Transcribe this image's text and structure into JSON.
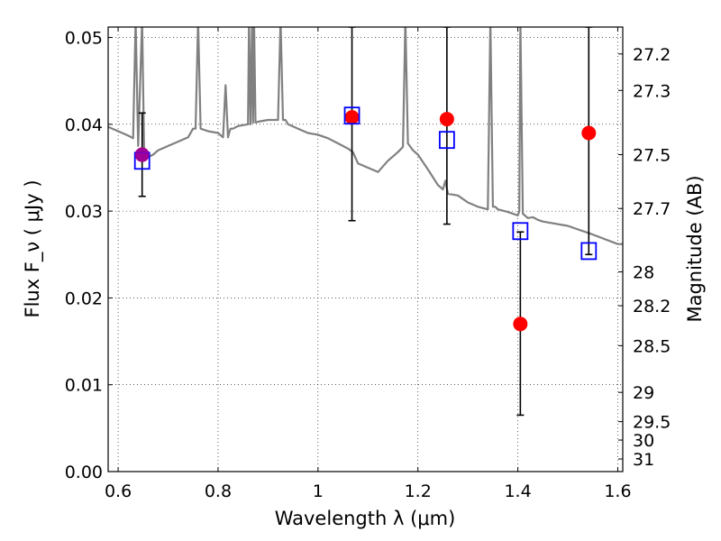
{
  "chart_data": {
    "type": "scatter",
    "xlabel": "Wavelength  λ (μm)",
    "ylabel": "Flux  F_ν  ( μJy )",
    "ylabel_right": "Magnitude (AB)",
    "xlim": [
      0.58,
      1.61
    ],
    "ylim": [
      0.0,
      0.0512
    ],
    "grid": true,
    "x_ticks": [
      0.6,
      0.8,
      1.0,
      1.2,
      1.4,
      1.6
    ],
    "x_tick_labels": [
      "0.6",
      "0.8",
      "1",
      "1.2",
      "1.4",
      "1.6"
    ],
    "y_ticks": [
      0.0,
      0.01,
      0.02,
      0.03,
      0.04,
      0.05
    ],
    "y_tick_labels": [
      "0.00",
      "0.01",
      "0.02",
      "0.03",
      "0.04",
      "0.05"
    ],
    "right_ticks": [
      {
        "label": "27.2",
        "flux": 0.0481
      },
      {
        "label": "27.3",
        "flux": 0.0439
      },
      {
        "label": "27.5",
        "flux": 0.0365
      },
      {
        "label": "27.7",
        "flux": 0.0303
      },
      {
        "label": "28",
        "flux": 0.023
      },
      {
        "label": "28.2",
        "flux": 0.0191
      },
      {
        "label": "28.5",
        "flux": 0.0145
      },
      {
        "label": "29",
        "flux": 0.00912
      },
      {
        "label": "29.5",
        "flux": 0.00575
      },
      {
        "label": "30",
        "flux": 0.00363
      },
      {
        "label": "31",
        "flux": 0.00145
      }
    ],
    "series": [
      {
        "kind": "line",
        "color": "#808080",
        "x": [
          0.58,
          0.6,
          0.62,
          0.63,
          0.635,
          0.64,
          0.648,
          0.652,
          0.655,
          0.66,
          0.67,
          0.68,
          0.7,
          0.72,
          0.74,
          0.75,
          0.755,
          0.76,
          0.765,
          0.78,
          0.8,
          0.81,
          0.815,
          0.82,
          0.822,
          0.825,
          0.83,
          0.84,
          0.86,
          0.862,
          0.865,
          0.868,
          0.87,
          0.872,
          0.875,
          0.88,
          0.9,
          0.92,
          0.925,
          0.93,
          0.935,
          0.94,
          0.96,
          0.98,
          1.0,
          1.02,
          1.04,
          1.06,
          1.07,
          1.08,
          1.1,
          1.12,
          1.14,
          1.16,
          1.17,
          1.175,
          1.18,
          1.185,
          1.19,
          1.2,
          1.22,
          1.24,
          1.25,
          1.255,
          1.26,
          1.28,
          1.3,
          1.32,
          1.34,
          1.345,
          1.35,
          1.355,
          1.36,
          1.38,
          1.4,
          1.403,
          1.405,
          1.41,
          1.42,
          1.43,
          1.44,
          1.45,
          1.5,
          1.55,
          1.6,
          1.61
        ],
        "y": [
          0.0397,
          0.0392,
          0.0387,
          0.0384,
          0.052,
          0.0375,
          0.052,
          0.0368,
          0.036,
          0.0362,
          0.0365,
          0.037,
          0.0375,
          0.038,
          0.0385,
          0.0395,
          0.0395,
          0.052,
          0.0395,
          0.0392,
          0.039,
          0.0385,
          0.0445,
          0.0385,
          0.039,
          0.0395,
          0.0395,
          0.0398,
          0.04,
          0.052,
          0.04,
          0.052,
          0.0402,
          0.052,
          0.0402,
          0.0403,
          0.0405,
          0.0405,
          0.052,
          0.0405,
          0.0405,
          0.04,
          0.0395,
          0.039,
          0.0388,
          0.0384,
          0.0378,
          0.0372,
          0.0368,
          0.0355,
          0.035,
          0.0345,
          0.0358,
          0.0368,
          0.0374,
          0.052,
          0.0378,
          0.0374,
          0.037,
          0.0365,
          0.0348,
          0.033,
          0.0325,
          0.0335,
          0.032,
          0.0318,
          0.031,
          0.0305,
          0.0302,
          0.052,
          0.0305,
          0.0305,
          0.0302,
          0.0299,
          0.0295,
          0.03,
          0.052,
          0.0297,
          0.0292,
          0.0293,
          0.029,
          0.0288,
          0.0283,
          0.0273,
          0.0262,
          0.0262
        ]
      },
      {
        "kind": "points",
        "marker": "circle",
        "color": "#ff0000",
        "x": [
          0.648,
          1.068,
          1.258,
          1.405,
          1.542
        ],
        "y": [
          0.0365,
          0.0408,
          0.0406,
          0.017,
          0.039
        ],
        "yerr_low": [
          0.0317,
          0.0289,
          0.0285,
          0.0065,
          0.025
        ],
        "yerr_high": [
          0.0413,
          0.0512,
          0.0512,
          0.0276,
          0.0512
        ]
      },
      {
        "kind": "points",
        "marker": "square-open",
        "color": "#0000ff",
        "x": [
          0.648,
          1.068,
          1.258,
          1.405,
          1.542
        ],
        "y": [
          0.0358,
          0.041,
          0.0382,
          0.0277,
          0.0254
        ]
      }
    ],
    "overlay_point": {
      "x": 0.648,
      "y": 0.0365,
      "color": "#9000b0"
    }
  }
}
